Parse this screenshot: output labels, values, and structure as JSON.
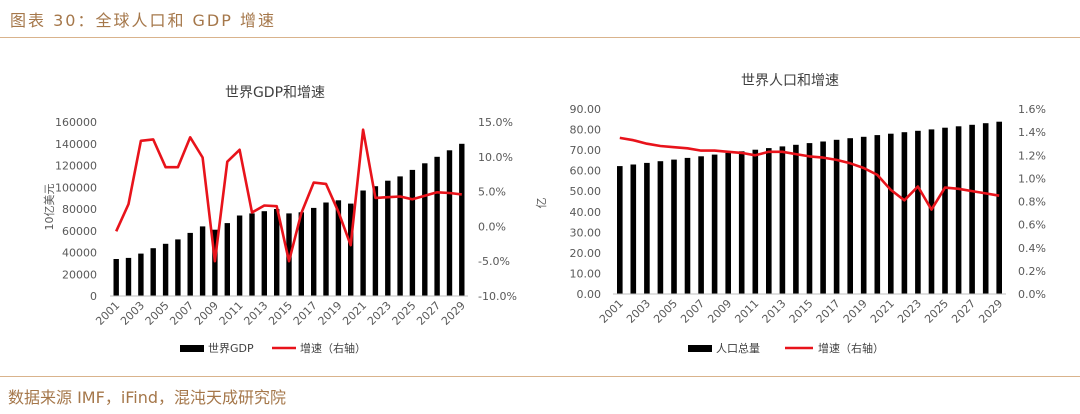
{
  "figure_title": "图表 30：全球人口和 GDP 增速",
  "source": "数据来源 IMF，iFind，混沌天成研究院",
  "colors": {
    "bar": "#000000",
    "line": "#e8131b",
    "accent": "#a5774a",
    "rule": "#d9b38c",
    "axis_text": "#595959"
  },
  "chart_data": [
    {
      "type": "bar+line",
      "title": "世界GDP和增速",
      "ylabel": "10亿美元",
      "x": [
        2001,
        2002,
        2003,
        2004,
        2005,
        2006,
        2007,
        2008,
        2009,
        2010,
        2011,
        2012,
        2013,
        2014,
        2015,
        2016,
        2017,
        2018,
        2019,
        2020,
        2021,
        2022,
        2023,
        2024,
        2025,
        2026,
        2027,
        2028,
        2029
      ],
      "x_tick_labels": [
        "2001",
        "2003",
        "2005",
        "2007",
        "2009",
        "2011",
        "2013",
        "2015",
        "2017",
        "2019",
        "2021",
        "2023",
        "2025",
        "2027",
        "2029"
      ],
      "ylim_left": [
        0,
        160000
      ],
      "left_ticks": [
        "0",
        "20000",
        "40000",
        "60000",
        "80000",
        "100000",
        "120000",
        "140000",
        "160000"
      ],
      "ylim_right": [
        -10,
        15
      ],
      "right_ticks": [
        "-10.0%",
        "-5.0%",
        "0.0%",
        "5.0%",
        "10.0%",
        "15.0%"
      ],
      "series": [
        {
          "name": "世界GDP",
          "kind": "bar",
          "axis": "left",
          "values": [
            34000,
            35000,
            39000,
            44000,
            48000,
            52000,
            58000,
            64000,
            61000,
            67000,
            74000,
            76000,
            78000,
            80000,
            76000,
            77000,
            81000,
            86000,
            88000,
            85000,
            97000,
            101000,
            106000,
            110000,
            116000,
            122000,
            128000,
            134000,
            140000
          ]
        },
        {
          "name": "增速（右轴）",
          "kind": "line",
          "axis": "right",
          "values": [
            -0.7,
            3.2,
            12.3,
            12.5,
            8.5,
            8.5,
            12.8,
            9.9,
            -5.0,
            9.3,
            11.0,
            2.0,
            3.0,
            2.9,
            -5.0,
            1.9,
            6.3,
            6.1,
            2.1,
            -2.7,
            13.9,
            4.1,
            4.2,
            4.3,
            3.9,
            4.4,
            4.9,
            4.8,
            4.6
          ]
        }
      ],
      "legend_position": "bottom"
    },
    {
      "type": "bar+line",
      "title": "世界人口和增速",
      "ylabel": "亿",
      "x": [
        2001,
        2002,
        2003,
        2004,
        2005,
        2006,
        2007,
        2008,
        2009,
        2010,
        2011,
        2012,
        2013,
        2014,
        2015,
        2016,
        2017,
        2018,
        2019,
        2020,
        2021,
        2022,
        2023,
        2024,
        2025,
        2026,
        2027,
        2028,
        2029
      ],
      "x_tick_labels": [
        "2001",
        "2003",
        "2005",
        "2007",
        "2009",
        "2011",
        "2013",
        "2015",
        "2017",
        "2019",
        "2021",
        "2023",
        "2025",
        "2027",
        "2029"
      ],
      "ylim_left": [
        0,
        90
      ],
      "left_ticks": [
        "0.00",
        "10.00",
        "20.00",
        "30.00",
        "40.00",
        "50.00",
        "60.00",
        "70.00",
        "80.00",
        "90.00"
      ],
      "ylim_right": [
        0,
        1.6
      ],
      "right_ticks": [
        "0.0%",
        "0.2%",
        "0.4%",
        "0.6%",
        "0.8%",
        "1.0%",
        "1.2%",
        "1.4%",
        "1.6%"
      ],
      "series": [
        {
          "name": "人口总量",
          "kind": "bar",
          "axis": "left",
          "values": [
            62.2,
            63.0,
            63.8,
            64.6,
            65.4,
            66.2,
            67.0,
            67.8,
            68.6,
            69.4,
            70.2,
            71.0,
            71.8,
            72.6,
            73.4,
            74.2,
            75.0,
            75.8,
            76.5,
            77.3,
            78.0,
            78.7,
            79.4,
            80.1,
            80.9,
            81.6,
            82.3,
            83.1,
            83.8
          ]
        },
        {
          "name": "增速（右轴）",
          "kind": "line",
          "axis": "right",
          "values": [
            1.35,
            1.33,
            1.3,
            1.28,
            1.27,
            1.26,
            1.24,
            1.24,
            1.23,
            1.22,
            1.2,
            1.23,
            1.23,
            1.21,
            1.19,
            1.18,
            1.16,
            1.13,
            1.09,
            1.03,
            0.9,
            0.81,
            0.93,
            0.73,
            0.92,
            0.91,
            0.89,
            0.87,
            0.85
          ]
        }
      ],
      "legend_position": "bottom"
    }
  ]
}
